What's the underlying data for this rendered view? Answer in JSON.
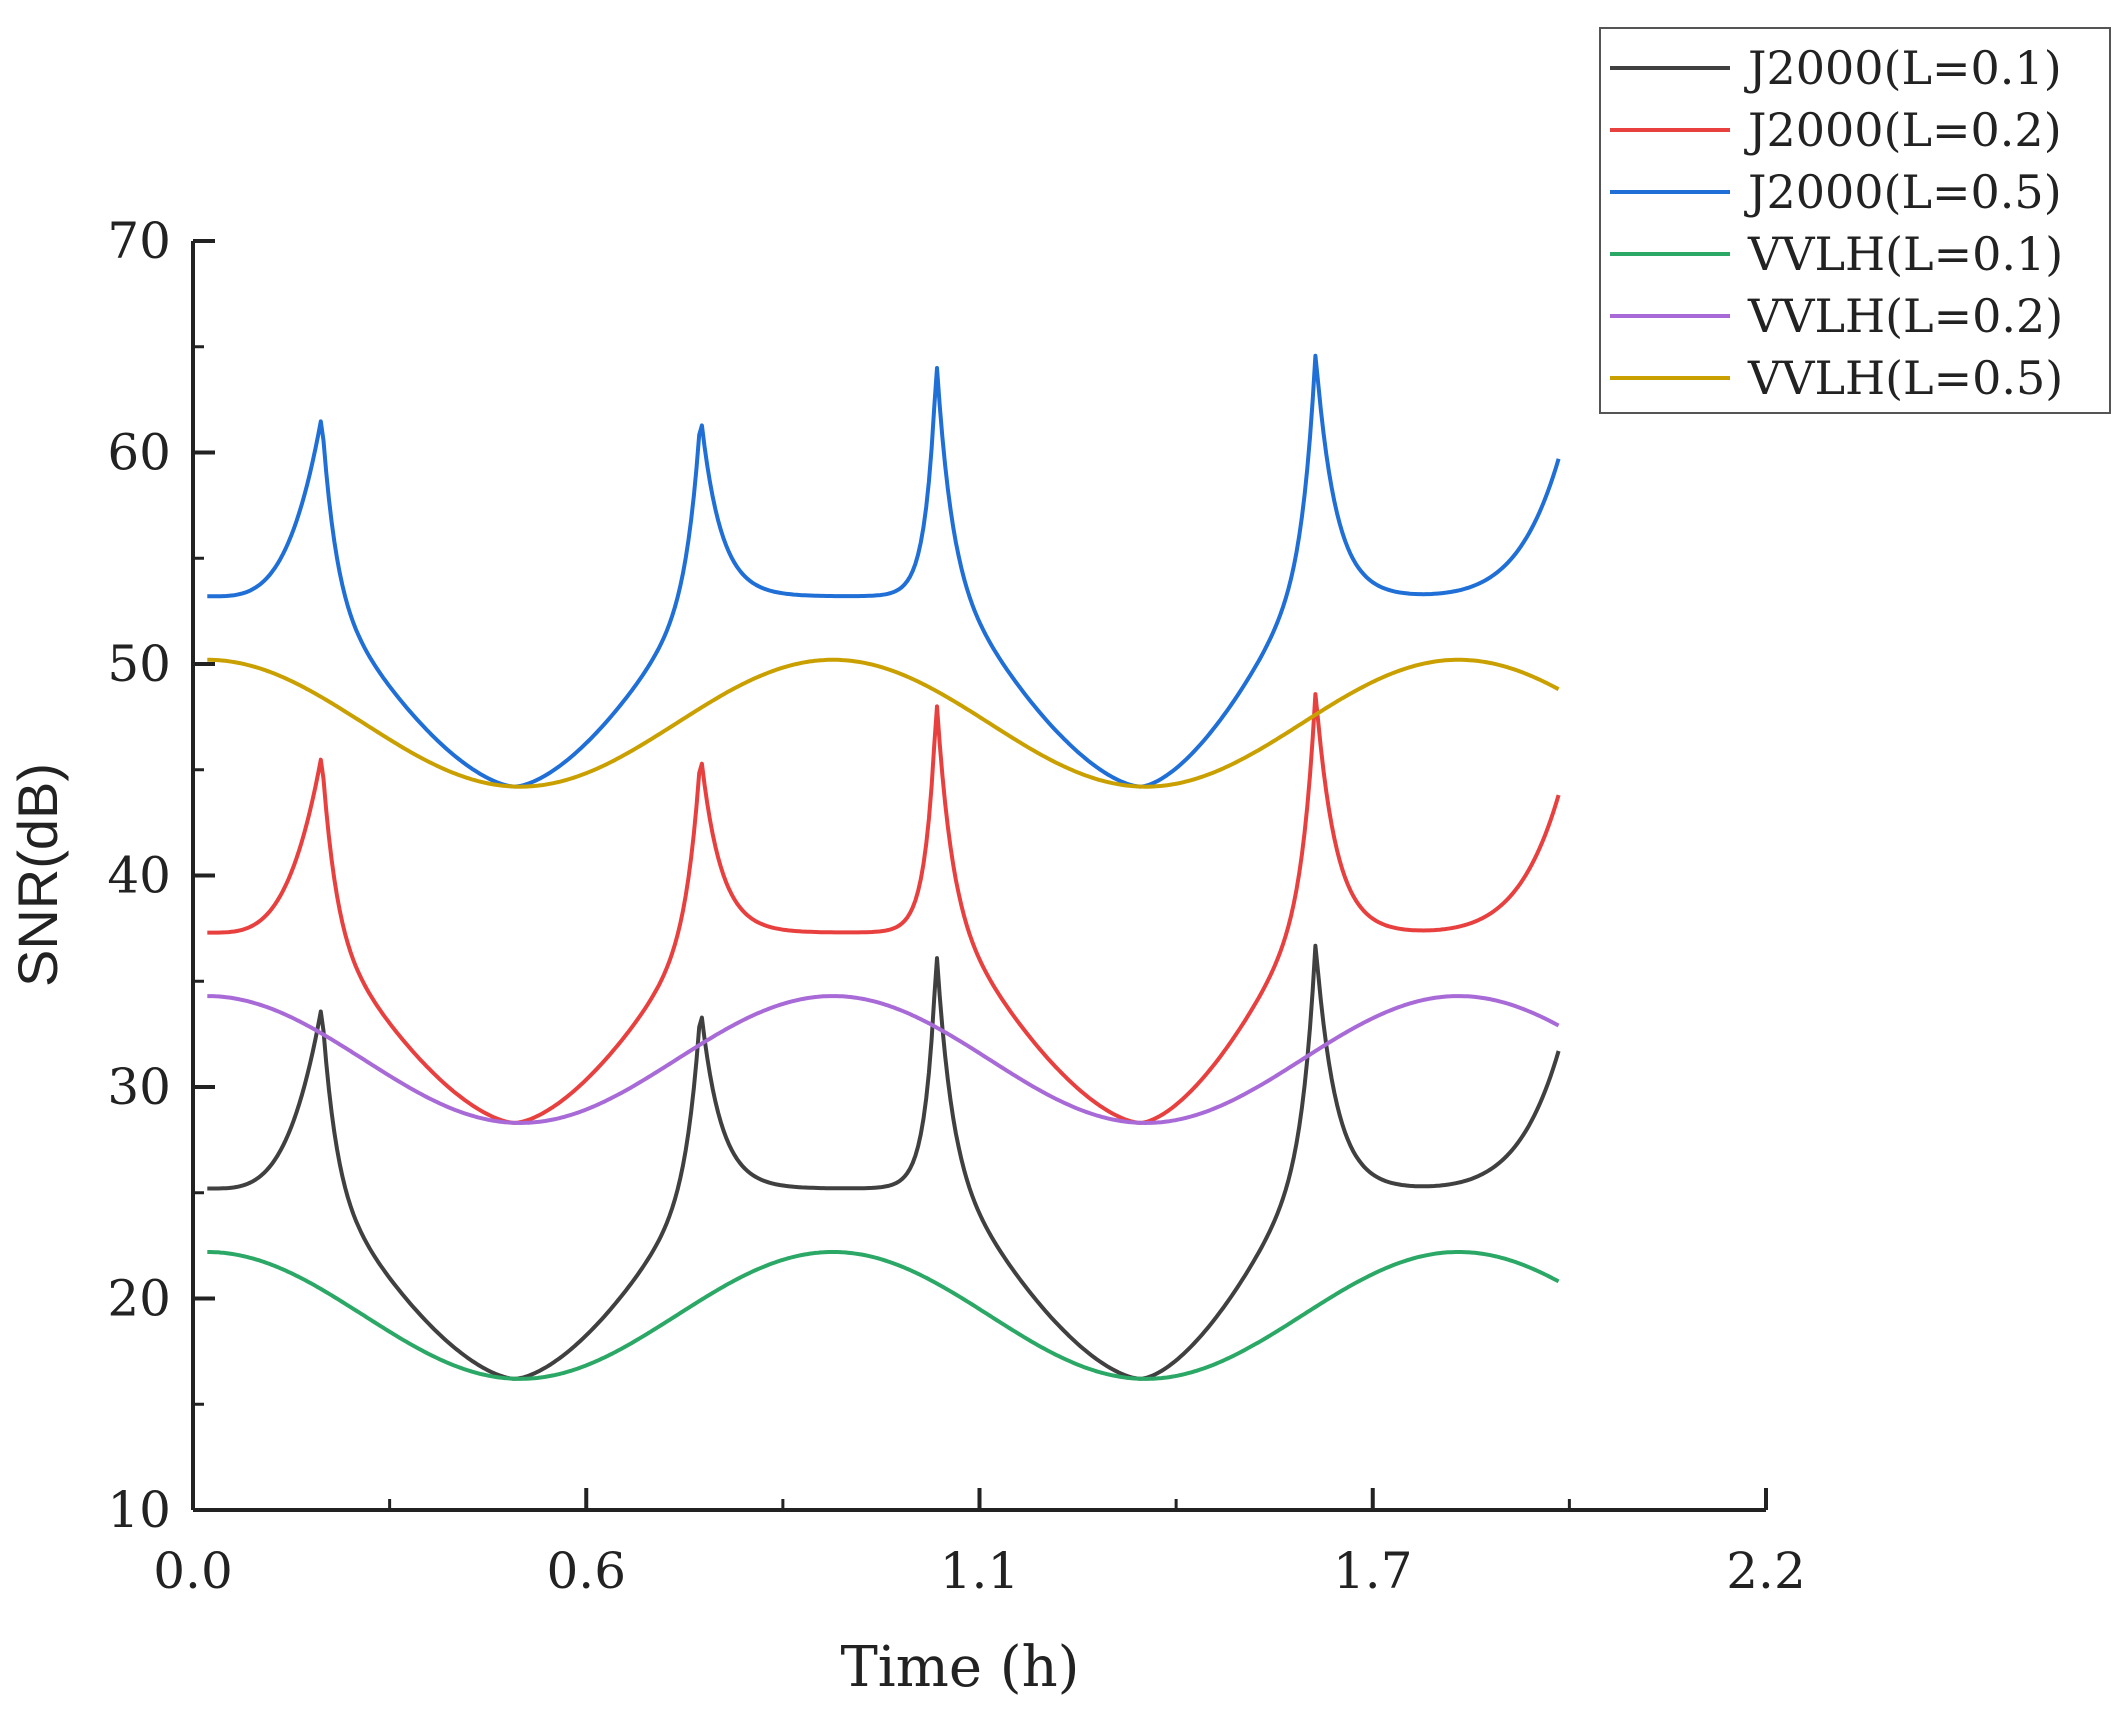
{
  "chart_data": {
    "type": "line",
    "title": "",
    "xlabel": "Time (h)",
    "ylabel": "SNR(dB)",
    "xlim": [
      0.0,
      2.2
    ],
    "ylim": [
      10,
      70
    ],
    "x_ticks": [
      "0.0",
      "0.6",
      "1.1",
      "1.7",
      "2.2"
    ],
    "y_ticks": [
      "10",
      "20",
      "30",
      "40",
      "50",
      "60",
      "70"
    ],
    "legend_position": "top-right outside",
    "params": {
      "x_start": 0.02,
      "x_end": 1.91,
      "period": 0.875,
      "spike_times": [
        0.18,
        0.71,
        1.04,
        1.57
      ]
    },
    "series": [
      {
        "name": "J2000(L=0.1)",
        "color": "#404040",
        "shape": "spike",
        "base": 25.2,
        "min": 16.2,
        "peak": [
          33.8,
          33.8,
          36.4,
          36.8
        ],
        "end": 31.7
      },
      {
        "name": "J2000(L=0.2)",
        "color": "#e8403f",
        "shape": "spike",
        "base": 37.3,
        "min": 28.3,
        "peak": [
          45.7,
          45.8,
          48.3,
          48.7
        ],
        "end": 43.8
      },
      {
        "name": "J2000(L=0.5)",
        "color": "#1f6fd6",
        "shape": "spike",
        "base": 53.2,
        "min": 44.2,
        "peak": [
          61.7,
          61.8,
          64.3,
          64.7
        ],
        "end": 59.7
      },
      {
        "name": "VVLH(L=0.1)",
        "color": "#2ca866",
        "shape": "wave",
        "center": 19.2,
        "amplitude": 3.0
      },
      {
        "name": "VVLH(L=0.2)",
        "color": "#a86ad6",
        "shape": "wave",
        "center": 31.3,
        "amplitude": 3.0
      },
      {
        "name": "VVLH(L=0.5)",
        "color": "#c9a000",
        "shape": "wave",
        "center": 47.2,
        "amplitude": 3.0
      }
    ]
  }
}
